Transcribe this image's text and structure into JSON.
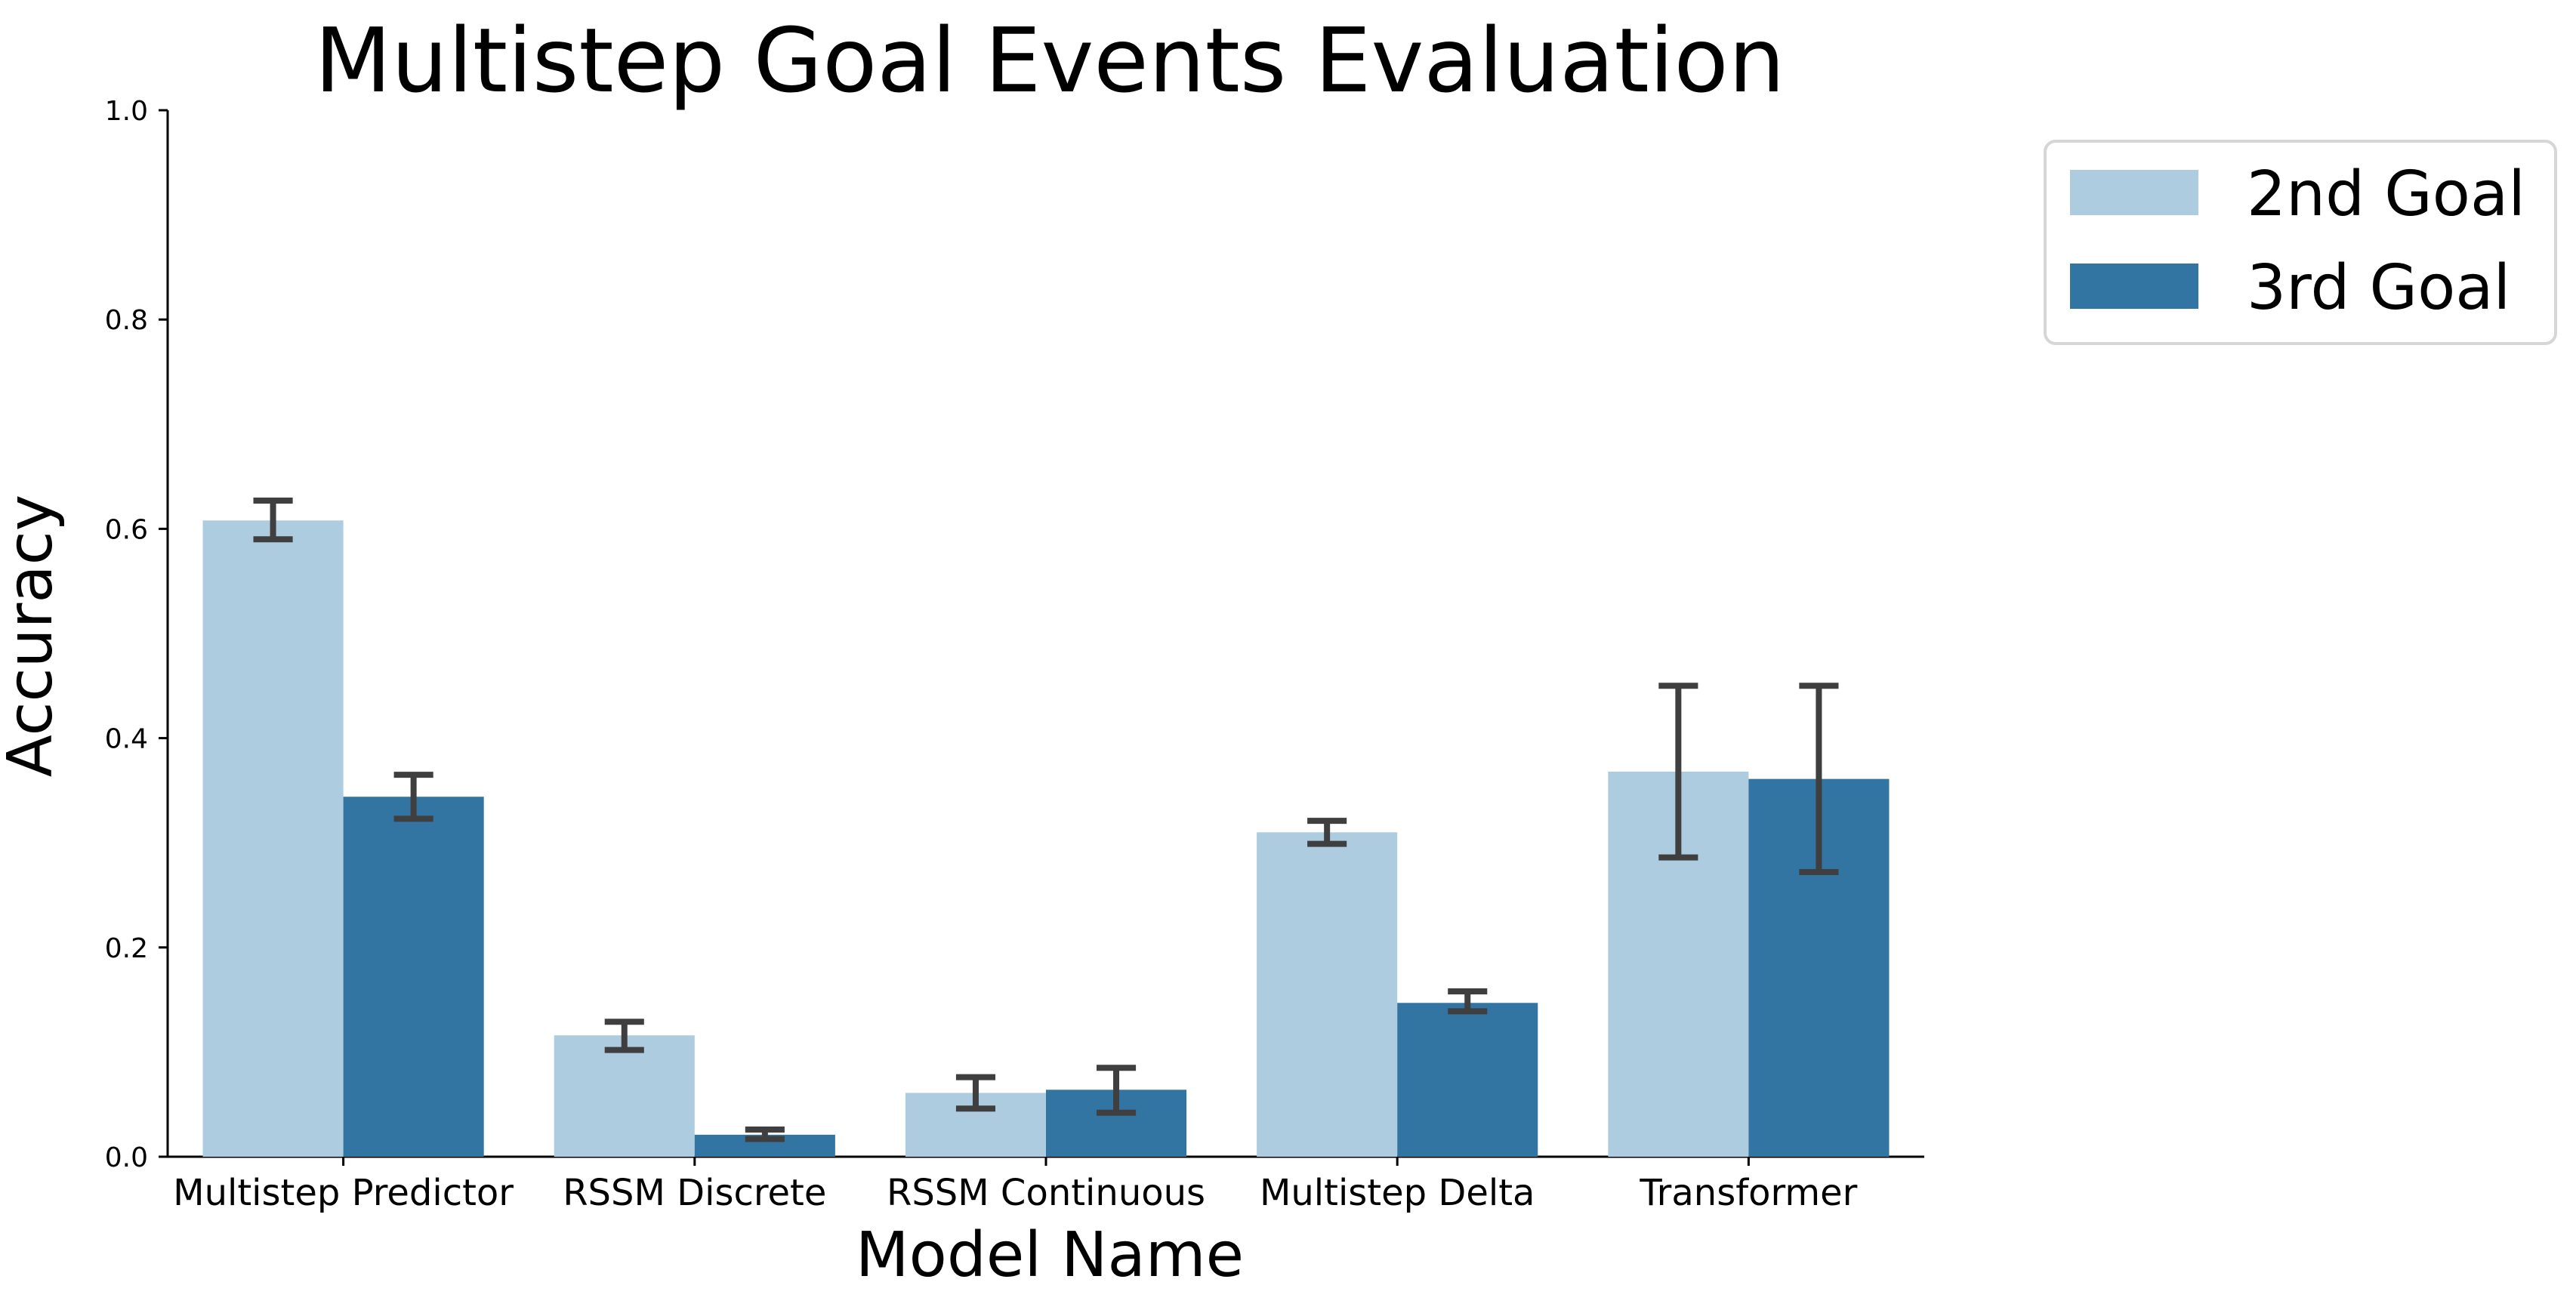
{
  "chart_data": {
    "type": "bar",
    "title": "Multistep Goal Events Evaluation",
    "xlabel": "Model Name",
    "ylabel": "Accuracy",
    "ylim": [
      0,
      1.0
    ],
    "yticks": [
      0.0,
      0.2,
      0.4,
      0.6,
      0.8,
      1.0
    ],
    "ytick_labels": [
      "0.0",
      "0.2",
      "0.4",
      "0.6",
      "0.8",
      "1.0"
    ],
    "categories": [
      "Multistep Predictor",
      "RSSM Discrete",
      "RSSM Continuous",
      "Multistep Delta",
      "Transformer"
    ],
    "series": [
      {
        "name": "2nd Goal",
        "color": "#aecce0",
        "values": [
          0.608,
          0.116,
          0.061,
          0.31,
          0.368
        ],
        "err_low": [
          0.59,
          0.102,
          0.046,
          0.299,
          0.286
        ],
        "err_high": [
          0.627,
          0.129,
          0.076,
          0.321,
          0.45
        ]
      },
      {
        "name": "3rd Goal",
        "color": "#3274a2",
        "values": [
          0.344,
          0.021,
          0.064,
          0.147,
          0.361
        ],
        "err_low": [
          0.323,
          0.017,
          0.042,
          0.139,
          0.272
        ],
        "err_high": [
          0.365,
          0.026,
          0.085,
          0.158,
          0.45
        ]
      }
    ],
    "errorbar_color": "#3f3f3f",
    "grid": false,
    "legend_position": "outside-top-right"
  }
}
